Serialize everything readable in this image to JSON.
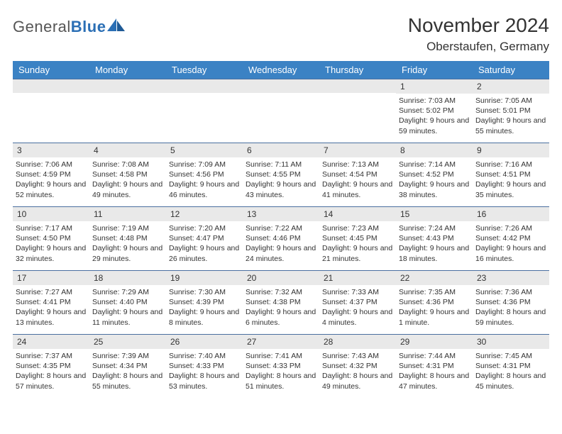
{
  "brand": {
    "part1": "General",
    "part2": "Blue"
  },
  "title": "November 2024",
  "location": "Oberstaufen, Germany",
  "colors": {
    "header_bg": "#3b82c4",
    "header_text": "#ffffff",
    "daynum_bg": "#e9e9e9",
    "rule": "#4a6fa0",
    "logo_blue": "#2b6fb5",
    "text": "#333333",
    "page_bg": "#ffffff"
  },
  "weekdays": [
    "Sunday",
    "Monday",
    "Tuesday",
    "Wednesday",
    "Thursday",
    "Friday",
    "Saturday"
  ],
  "weeks": [
    [
      {
        "n": "",
        "sr": "",
        "ss": "",
        "dl": ""
      },
      {
        "n": "",
        "sr": "",
        "ss": "",
        "dl": ""
      },
      {
        "n": "",
        "sr": "",
        "ss": "",
        "dl": ""
      },
      {
        "n": "",
        "sr": "",
        "ss": "",
        "dl": ""
      },
      {
        "n": "",
        "sr": "",
        "ss": "",
        "dl": ""
      },
      {
        "n": "1",
        "sr": "Sunrise: 7:03 AM",
        "ss": "Sunset: 5:02 PM",
        "dl": "Daylight: 9 hours and 59 minutes."
      },
      {
        "n": "2",
        "sr": "Sunrise: 7:05 AM",
        "ss": "Sunset: 5:01 PM",
        "dl": "Daylight: 9 hours and 55 minutes."
      }
    ],
    [
      {
        "n": "3",
        "sr": "Sunrise: 7:06 AM",
        "ss": "Sunset: 4:59 PM",
        "dl": "Daylight: 9 hours and 52 minutes."
      },
      {
        "n": "4",
        "sr": "Sunrise: 7:08 AM",
        "ss": "Sunset: 4:58 PM",
        "dl": "Daylight: 9 hours and 49 minutes."
      },
      {
        "n": "5",
        "sr": "Sunrise: 7:09 AM",
        "ss": "Sunset: 4:56 PM",
        "dl": "Daylight: 9 hours and 46 minutes."
      },
      {
        "n": "6",
        "sr": "Sunrise: 7:11 AM",
        "ss": "Sunset: 4:55 PM",
        "dl": "Daylight: 9 hours and 43 minutes."
      },
      {
        "n": "7",
        "sr": "Sunrise: 7:13 AM",
        "ss": "Sunset: 4:54 PM",
        "dl": "Daylight: 9 hours and 41 minutes."
      },
      {
        "n": "8",
        "sr": "Sunrise: 7:14 AM",
        "ss": "Sunset: 4:52 PM",
        "dl": "Daylight: 9 hours and 38 minutes."
      },
      {
        "n": "9",
        "sr": "Sunrise: 7:16 AM",
        "ss": "Sunset: 4:51 PM",
        "dl": "Daylight: 9 hours and 35 minutes."
      }
    ],
    [
      {
        "n": "10",
        "sr": "Sunrise: 7:17 AM",
        "ss": "Sunset: 4:50 PM",
        "dl": "Daylight: 9 hours and 32 minutes."
      },
      {
        "n": "11",
        "sr": "Sunrise: 7:19 AM",
        "ss": "Sunset: 4:48 PM",
        "dl": "Daylight: 9 hours and 29 minutes."
      },
      {
        "n": "12",
        "sr": "Sunrise: 7:20 AM",
        "ss": "Sunset: 4:47 PM",
        "dl": "Daylight: 9 hours and 26 minutes."
      },
      {
        "n": "13",
        "sr": "Sunrise: 7:22 AM",
        "ss": "Sunset: 4:46 PM",
        "dl": "Daylight: 9 hours and 24 minutes."
      },
      {
        "n": "14",
        "sr": "Sunrise: 7:23 AM",
        "ss": "Sunset: 4:45 PM",
        "dl": "Daylight: 9 hours and 21 minutes."
      },
      {
        "n": "15",
        "sr": "Sunrise: 7:24 AM",
        "ss": "Sunset: 4:43 PM",
        "dl": "Daylight: 9 hours and 18 minutes."
      },
      {
        "n": "16",
        "sr": "Sunrise: 7:26 AM",
        "ss": "Sunset: 4:42 PM",
        "dl": "Daylight: 9 hours and 16 minutes."
      }
    ],
    [
      {
        "n": "17",
        "sr": "Sunrise: 7:27 AM",
        "ss": "Sunset: 4:41 PM",
        "dl": "Daylight: 9 hours and 13 minutes."
      },
      {
        "n": "18",
        "sr": "Sunrise: 7:29 AM",
        "ss": "Sunset: 4:40 PM",
        "dl": "Daylight: 9 hours and 11 minutes."
      },
      {
        "n": "19",
        "sr": "Sunrise: 7:30 AM",
        "ss": "Sunset: 4:39 PM",
        "dl": "Daylight: 9 hours and 8 minutes."
      },
      {
        "n": "20",
        "sr": "Sunrise: 7:32 AM",
        "ss": "Sunset: 4:38 PM",
        "dl": "Daylight: 9 hours and 6 minutes."
      },
      {
        "n": "21",
        "sr": "Sunrise: 7:33 AM",
        "ss": "Sunset: 4:37 PM",
        "dl": "Daylight: 9 hours and 4 minutes."
      },
      {
        "n": "22",
        "sr": "Sunrise: 7:35 AM",
        "ss": "Sunset: 4:36 PM",
        "dl": "Daylight: 9 hours and 1 minute."
      },
      {
        "n": "23",
        "sr": "Sunrise: 7:36 AM",
        "ss": "Sunset: 4:36 PM",
        "dl": "Daylight: 8 hours and 59 minutes."
      }
    ],
    [
      {
        "n": "24",
        "sr": "Sunrise: 7:37 AM",
        "ss": "Sunset: 4:35 PM",
        "dl": "Daylight: 8 hours and 57 minutes."
      },
      {
        "n": "25",
        "sr": "Sunrise: 7:39 AM",
        "ss": "Sunset: 4:34 PM",
        "dl": "Daylight: 8 hours and 55 minutes."
      },
      {
        "n": "26",
        "sr": "Sunrise: 7:40 AM",
        "ss": "Sunset: 4:33 PM",
        "dl": "Daylight: 8 hours and 53 minutes."
      },
      {
        "n": "27",
        "sr": "Sunrise: 7:41 AM",
        "ss": "Sunset: 4:33 PM",
        "dl": "Daylight: 8 hours and 51 minutes."
      },
      {
        "n": "28",
        "sr": "Sunrise: 7:43 AM",
        "ss": "Sunset: 4:32 PM",
        "dl": "Daylight: 8 hours and 49 minutes."
      },
      {
        "n": "29",
        "sr": "Sunrise: 7:44 AM",
        "ss": "Sunset: 4:31 PM",
        "dl": "Daylight: 8 hours and 47 minutes."
      },
      {
        "n": "30",
        "sr": "Sunrise: 7:45 AM",
        "ss": "Sunset: 4:31 PM",
        "dl": "Daylight: 8 hours and 45 minutes."
      }
    ]
  ]
}
